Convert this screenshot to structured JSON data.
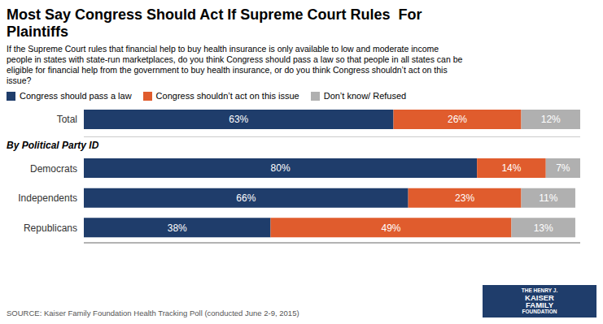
{
  "chart_data": {
    "type": "bar",
    "orientation": "horizontal",
    "stacked": true,
    "title": "Most Say Congress Should Act If Supreme Court Rules  For\nPlaintiffs",
    "subtitle": "If the Supreme Court rules that financial help to buy health insurance is only available to low and moderate income\npeople in states with state-run marketplaces, do you think Congress should pass a law so that people in all states can be\neligible for financial help from the government to buy health insurance, or do you think Congress shouldn’t act on this\nissue?",
    "source": "SOURCE: Kaiser Family Foundation Health Tracking Poll (conducted June 2-9, 2015)",
    "annotations": [
      "By Political Party ID",
      "THE HENRY J.",
      "KAISER",
      "FAMILY",
      "FOUNDATION"
    ],
    "categories": [
      "Total",
      "Democrats",
      "Independents",
      "Republicans"
    ],
    "series": [
      {
        "name": "Congress should pass a law",
        "color": "#1f3d6b",
        "values": [
          63,
          80,
          66,
          38
        ],
        "value_labels": [
          "63%",
          "80%",
          "66%",
          "38%"
        ]
      },
      {
        "name": "Congress shouldn’t act on this issue",
        "color": "#e05c2d",
        "values": [
          26,
          14,
          23,
          49
        ],
        "value_labels": [
          "26%",
          "14%",
          "23%",
          "49%"
        ]
      },
      {
        "name": "Don’t know/ Refused",
        "color": "#b0b0b0",
        "values": [
          12,
          7,
          11,
          13
        ],
        "value_labels": [
          "12%",
          "7%",
          "11%",
          "13%"
        ]
      }
    ],
    "xlim": [
      0,
      101
    ],
    "data_labels": true,
    "tick_labels": "y",
    "legend": "upper left",
    "grid": false
  }
}
